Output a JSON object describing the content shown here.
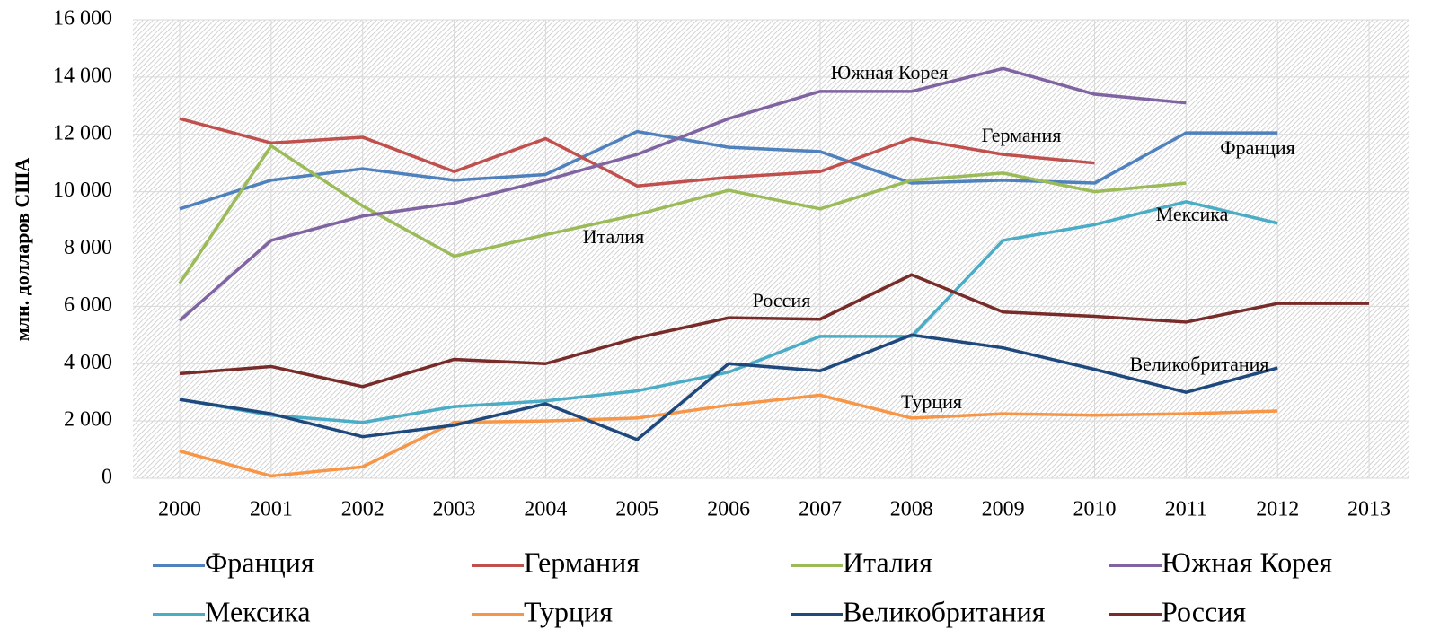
{
  "chart_data": {
    "type": "line",
    "ylabel": "млн. долларов США",
    "categories": [
      "2000",
      "2001",
      "2002",
      "2003",
      "2004",
      "2005",
      "2006",
      "2007",
      "2008",
      "2009",
      "2010",
      "2011",
      "2012",
      "2013"
    ],
    "ylim": [
      0,
      16000
    ],
    "yticks": [
      0,
      {
        "value": 2000,
        "label": "2 000"
      },
      {
        "value": 4000,
        "label": "4 000"
      },
      {
        "value": 6000,
        "label": "6 000"
      },
      {
        "value": 8000,
        "label": "8 000"
      },
      {
        "value": 10000,
        "label": "10 000"
      },
      {
        "value": 12000,
        "label": "12 000"
      },
      {
        "value": 14000,
        "label": "14 000"
      },
      {
        "value": 16000,
        "label": "16 000"
      }
    ],
    "grid": true,
    "legend": "bottom",
    "series": [
      {
        "name": "Франция",
        "color": "#4f81bd",
        "values": [
          9400,
          10400,
          10800,
          10400,
          10600,
          12100,
          11550,
          11400,
          10300,
          10400,
          10300,
          12050,
          12050,
          null
        ]
      },
      {
        "name": "Германия",
        "color": "#c0504d",
        "values": [
          12550,
          11700,
          11900,
          10700,
          11850,
          10200,
          10500,
          10700,
          11850,
          11300,
          11000,
          null,
          null,
          null
        ]
      },
      {
        "name": "Италия",
        "color": "#9bbb59",
        "values": [
          6800,
          11600,
          9500,
          7750,
          8500,
          9200,
          10050,
          9400,
          10400,
          10650,
          10000,
          10300,
          null,
          null
        ]
      },
      {
        "name": "Южная Корея",
        "color": "#8064a2",
        "values": [
          5500,
          8300,
          9150,
          9600,
          10400,
          11300,
          12550,
          13500,
          13500,
          14300,
          13400,
          13100,
          null,
          null
        ]
      },
      {
        "name": "Мексика",
        "color": "#4bacc6",
        "values": [
          2750,
          2200,
          1950,
          2500,
          2700,
          3050,
          3700,
          4950,
          4950,
          8300,
          8850,
          9650,
          8900,
          null
        ]
      },
      {
        "name": "Турция",
        "color": "#f79646",
        "values": [
          950,
          80,
          400,
          1950,
          2000,
          2100,
          2550,
          2900,
          2100,
          2250,
          2200,
          2250,
          2350,
          null
        ]
      },
      {
        "name": "Великобритания",
        "color": "#1f497d",
        "values": [
          2750,
          2250,
          1450,
          1850,
          2600,
          1350,
          4000,
          3750,
          5000,
          4550,
          3800,
          3000,
          3850,
          null
        ]
      },
      {
        "name": "Россия",
        "color": "#772c2a",
        "values": [
          3650,
          3900,
          3200,
          4150,
          4000,
          4900,
          5600,
          5550,
          7100,
          5800,
          5650,
          5450,
          6100,
          6100
        ]
      }
    ],
    "annotations": [
      "Франция",
      "Германия",
      "Италия",
      "Южная Корея",
      "Мексика",
      "Турция",
      "Великобритания",
      "Россия"
    ]
  }
}
